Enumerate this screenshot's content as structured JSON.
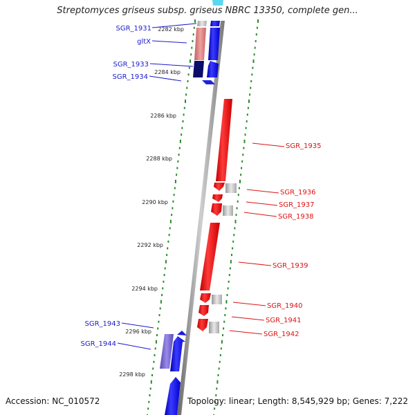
{
  "title": "Streptomyces griseus subsp. griseus NBRC 13350, complete gen...",
  "accession": "Accession: NC_010572",
  "summary": "Topology: linear; Length: 8,545,929 bp; Genes: 7,222",
  "kbp_labels": [
    "2282 kbp",
    "2284 kbp",
    "2286 kbp",
    "2288 kbp",
    "2290 kbp",
    "2292 kbp",
    "2294 kbp",
    "2296 kbp",
    "2298 kbp"
  ],
  "genes_left": [
    "SGR_1931",
    "gltX",
    "SGR_1933",
    "SGR_1934",
    "SGR_1943",
    "SGR_1944"
  ],
  "genes_right": [
    "SGR_1935",
    "SGR_1936",
    "SGR_1937",
    "SGR_1938",
    "SGR_1939",
    "SGR_1940",
    "SGR_1941",
    "SGR_1942"
  ],
  "colors": {
    "forward_gene": "#0000ee",
    "reverse_gene": "#ee0000",
    "rna_gene": "#e08080",
    "scale_tick": "#2a8a2a",
    "backbone": "#888888"
  }
}
